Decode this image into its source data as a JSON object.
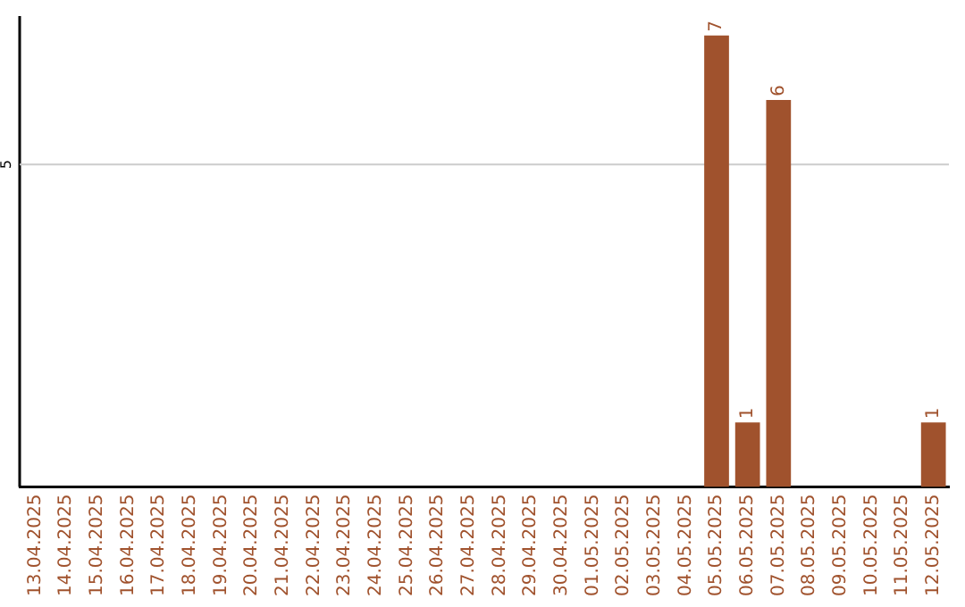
{
  "chart_data": {
    "type": "bar",
    "categories": [
      "13.04.2025",
      "14.04.2025",
      "15.04.2025",
      "16.04.2025",
      "17.04.2025",
      "18.04.2025",
      "19.04.2025",
      "20.04.2025",
      "21.04.2025",
      "22.04.2025",
      "23.04.2025",
      "24.04.2025",
      "25.04.2025",
      "26.04.2025",
      "27.04.2025",
      "28.04.2025",
      "29.04.2025",
      "30.04.2025",
      "01.05.2025",
      "02.05.2025",
      "03.05.2025",
      "04.05.2025",
      "05.05.2025",
      "06.05.2025",
      "07.05.2025",
      "08.05.2025",
      "09.05.2025",
      "10.05.2025",
      "11.05.2025",
      "12.05.2025"
    ],
    "values": [
      null,
      null,
      null,
      null,
      null,
      null,
      null,
      null,
      null,
      null,
      null,
      null,
      null,
      null,
      null,
      null,
      null,
      null,
      null,
      null,
      null,
      null,
      7,
      1,
      6,
      null,
      null,
      null,
      null,
      1
    ],
    "data_labels": true,
    "color": "#a0522d",
    "ylim": [
      0,
      7.3
    ],
    "ref_lines": [
      {
        "axis": "y",
        "value": 5,
        "label": "5",
        "color": "#cccccc"
      }
    ],
    "legend": false
  }
}
